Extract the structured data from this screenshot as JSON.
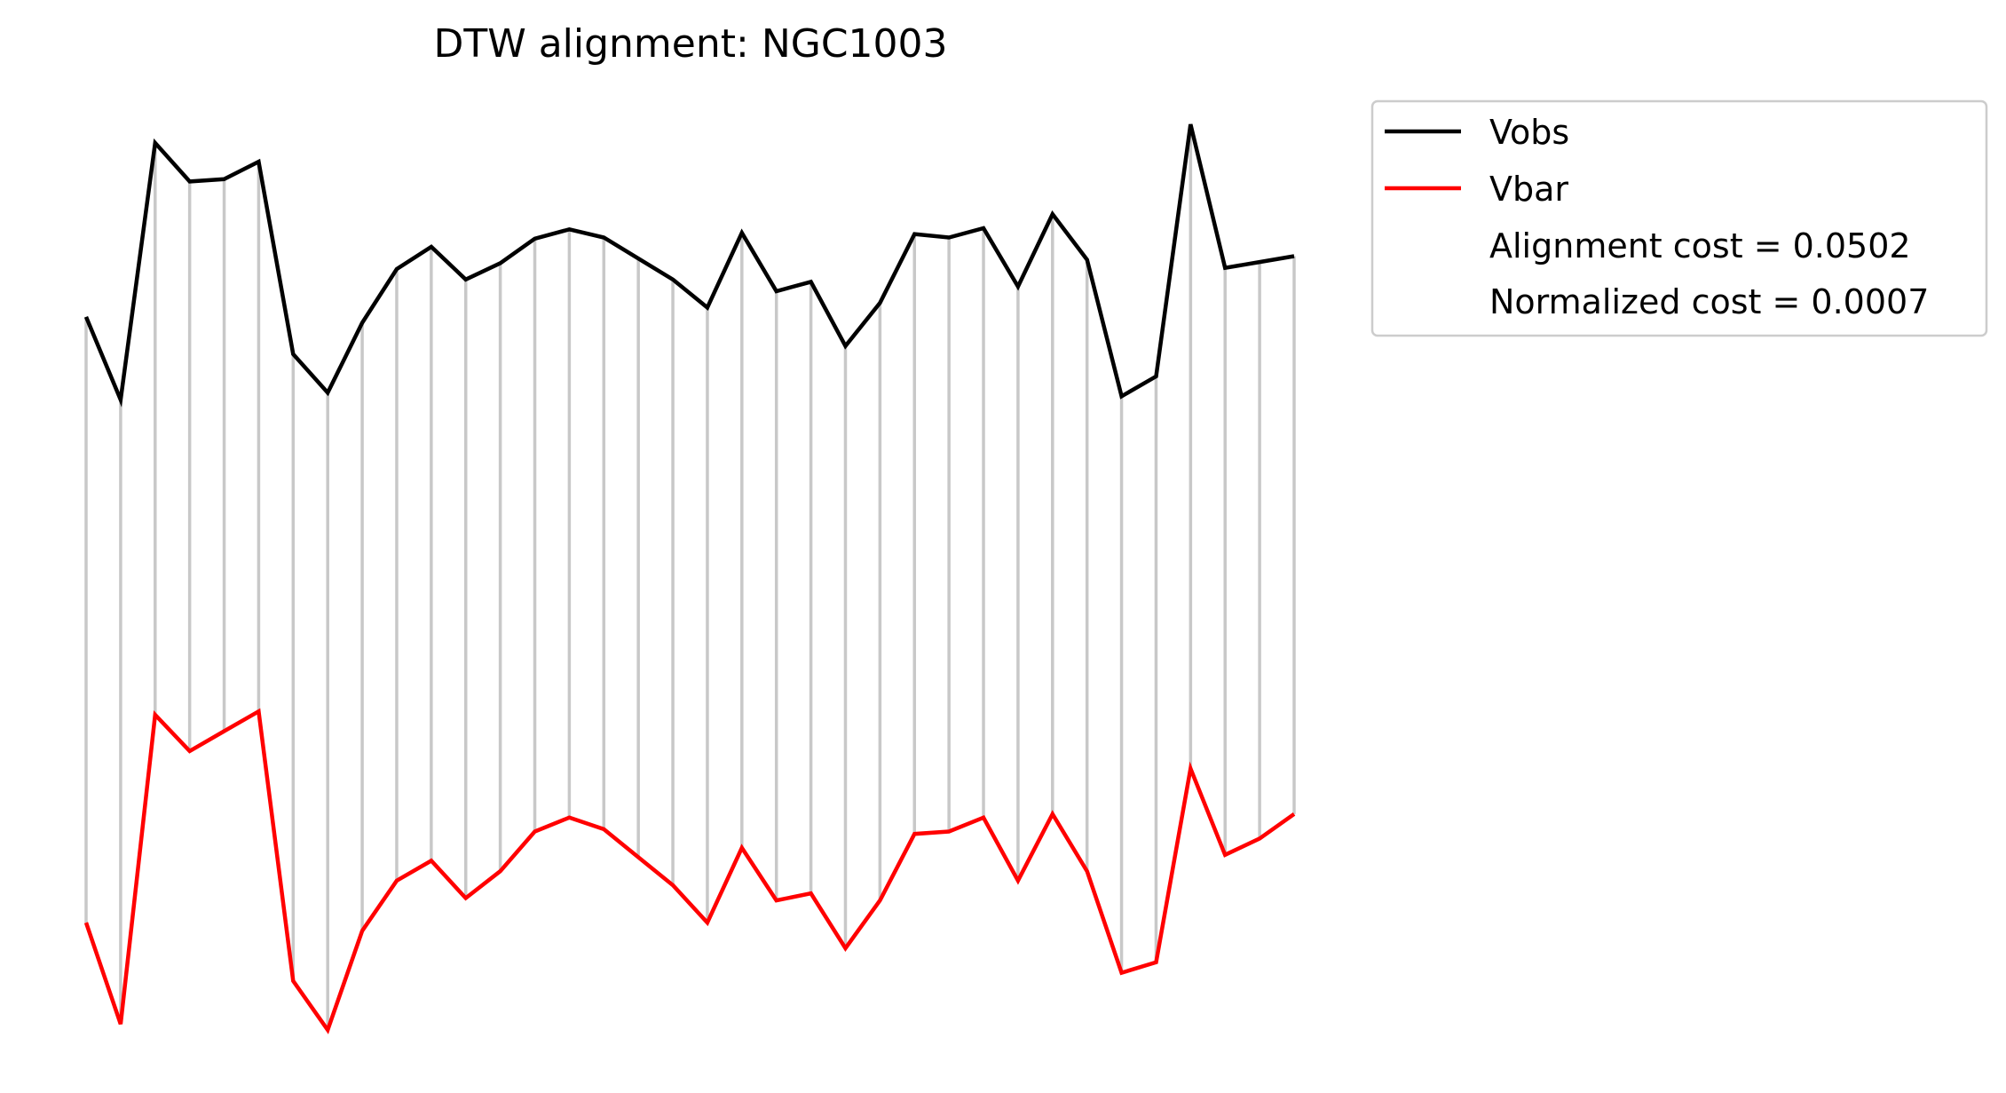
{
  "chart_data": {
    "type": "line",
    "title": "DTW alignment: NGC1003",
    "xlabel": "",
    "ylabel": "",
    "axes_visible": false,
    "grid": false,
    "legend_placement": "outside-upper-right",
    "x": [
      0,
      1,
      2,
      3,
      4,
      5,
      6,
      7,
      8,
      9,
      10,
      11,
      12,
      13,
      14,
      15,
      16,
      17,
      18,
      19,
      20,
      21,
      22,
      23,
      24,
      25,
      26,
      27,
      28,
      29,
      30,
      31,
      32,
      33,
      34,
      35
    ],
    "series": [
      {
        "name": "Vobs",
        "color": "#000000",
        "values": [
          0.619,
          0.548,
          0.768,
          0.735,
          0.737,
          0.752,
          0.587,
          0.554,
          0.614,
          0.66,
          0.679,
          0.651,
          0.665,
          0.686,
          0.694,
          0.687,
          0.669,
          0.651,
          0.627,
          0.691,
          0.641,
          0.649,
          0.594,
          0.631,
          0.69,
          0.687,
          0.695,
          0.645,
          0.707,
          0.668,
          0.551,
          0.568,
          0.784,
          0.661,
          0.666,
          0.671
        ]
      },
      {
        "name": "Vbar",
        "color": "#ff0000",
        "values": [
          0.1,
          0.013,
          0.278,
          0.247,
          0.264,
          0.281,
          0.05,
          0.008,
          0.093,
          0.136,
          0.153,
          0.121,
          0.144,
          0.178,
          0.19,
          0.18,
          0.156,
          0.132,
          0.1,
          0.164,
          0.119,
          0.125,
          0.078,
          0.119,
          0.176,
          0.178,
          0.19,
          0.136,
          0.193,
          0.144,
          0.057,
          0.066,
          0.232,
          0.158,
          0.172,
          0.193
        ]
      }
    ],
    "alignment_pairs": [
      [
        0,
        0
      ],
      [
        1,
        1
      ],
      [
        2,
        2
      ],
      [
        3,
        3
      ],
      [
        4,
        4
      ],
      [
        5,
        5
      ],
      [
        6,
        6
      ],
      [
        7,
        7
      ],
      [
        8,
        8
      ],
      [
        9,
        9
      ],
      [
        10,
        10
      ],
      [
        11,
        11
      ],
      [
        12,
        12
      ],
      [
        13,
        13
      ],
      [
        14,
        14
      ],
      [
        15,
        15
      ],
      [
        16,
        16
      ],
      [
        17,
        17
      ],
      [
        18,
        18
      ],
      [
        19,
        19
      ],
      [
        20,
        20
      ],
      [
        21,
        21
      ],
      [
        22,
        22
      ],
      [
        23,
        23
      ],
      [
        24,
        24
      ],
      [
        25,
        25
      ],
      [
        26,
        26
      ],
      [
        27,
        27
      ],
      [
        28,
        28
      ],
      [
        29,
        29
      ],
      [
        30,
        30
      ],
      [
        31,
        31
      ],
      [
        32,
        32
      ],
      [
        33,
        33
      ],
      [
        34,
        34
      ],
      [
        35,
        35
      ]
    ],
    "alignment_line_color": "#c8c8c8",
    "legend": {
      "entries": [
        {
          "label": "Vobs",
          "color": "#000000"
        },
        {
          "label": "Vbar",
          "color": "#ff0000"
        }
      ],
      "notes": [
        "Alignment cost = 0.0502",
        "Normalized cost = 0.0007"
      ]
    }
  }
}
